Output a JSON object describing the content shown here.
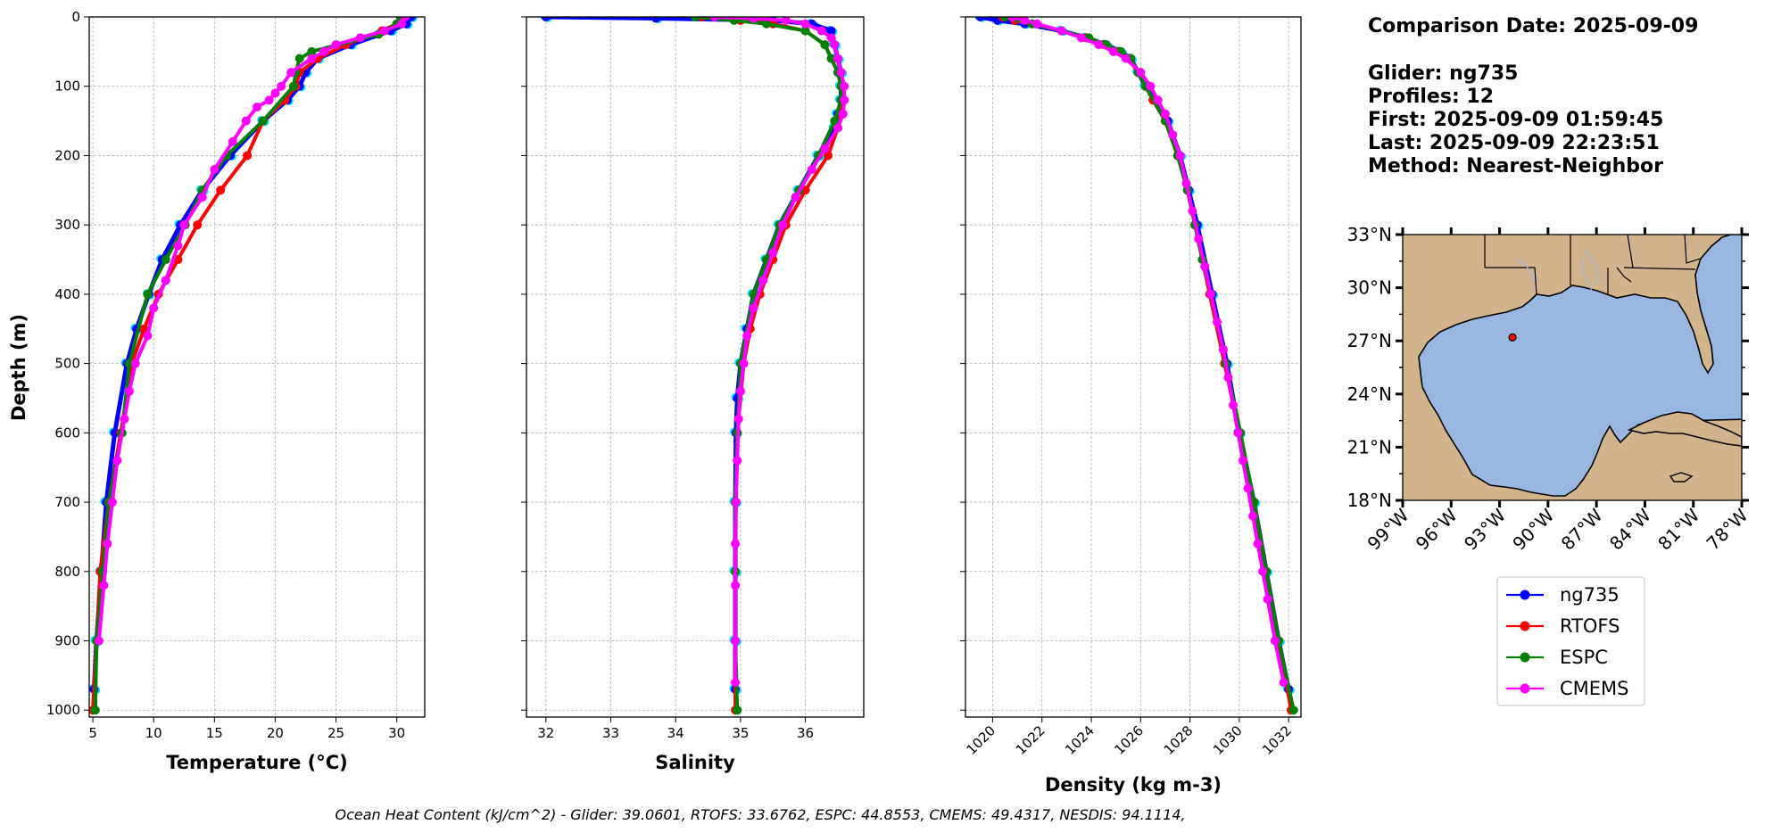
{
  "info": {
    "comparison_date": "Comparison Date: 2025-09-09",
    "glider": "Glider: ng735",
    "profiles": "Profiles: 12",
    "first": "First: 2025-09-09 01:59:45",
    "last": "Last: 2025-09-09 22:23:51",
    "method": "Method: Nearest-Neighbor"
  },
  "footer": "Ocean Heat Content (kJ/cm^2) - Glider: 39.0601,  RTOFS: 33.6762,  ESPC: 44.8553,  CMEMS: 49.4317,  NESDIS: 94.1114,",
  "colors": {
    "ng735": "#0000ff",
    "ng735_scatter": "#00e5ff",
    "RTOFS": "#ff0000",
    "ESPC": "#008000",
    "CMEMS": "#ff00ff",
    "land": "#d2b48c",
    "ocean": "#99b6e0"
  },
  "chart_data": [
    {
      "type": "line",
      "name": "temperature-profile",
      "xlabel": "Temperature (°C)",
      "ylabel": "Depth (m)",
      "xlim": [
        4.7,
        32.3
      ],
      "ylim": [
        1010,
        0
      ],
      "xticks": [
        5,
        10,
        15,
        20,
        25,
        30
      ],
      "yticks": [
        0,
        100,
        200,
        300,
        400,
        500,
        600,
        700,
        800,
        900,
        1000
      ],
      "grid": true,
      "series": [
        {
          "name": "ng735",
          "depth": [
            0,
            10,
            20,
            40,
            60,
            80,
            100,
            120,
            150,
            200,
            250,
            300,
            350,
            400,
            450,
            500,
            600,
            700,
            800,
            900,
            970
          ],
          "values": [
            31.2,
            30.8,
            29.5,
            26.2,
            23.5,
            22.5,
            22.0,
            21.0,
            19.0,
            16.3,
            14.0,
            12.2,
            10.7,
            9.6,
            8.6,
            7.8,
            6.8,
            6.1,
            5.7,
            5.3,
            5.1
          ]
        },
        {
          "name": "RTOFS",
          "depth": [
            0,
            10,
            20,
            40,
            60,
            80,
            100,
            120,
            150,
            200,
            250,
            300,
            350,
            400,
            450,
            500,
            600,
            700,
            800,
            900,
            1000
          ],
          "values": [
            30.3,
            30.0,
            28.8,
            25.8,
            23.5,
            22.0,
            21.7,
            20.8,
            19.0,
            17.7,
            15.5,
            13.6,
            12.0,
            10.4,
            9.2,
            8.2,
            7.3,
            6.3,
            5.6,
            5.3,
            5.0
          ]
        },
        {
          "name": "ESPC",
          "depth": [
            0,
            10,
            25,
            50,
            60,
            80,
            100,
            150,
            200,
            250,
            300,
            350,
            400,
            500,
            600,
            700,
            800,
            900,
            1000
          ],
          "values": [
            30.3,
            30.0,
            28.5,
            23.0,
            22.0,
            21.7,
            21.5,
            19.0,
            16.0,
            14.0,
            12.6,
            11.0,
            9.5,
            8.0,
            7.4,
            6.3,
            5.8,
            5.3,
            5.2
          ]
        },
        {
          "name": "CMEMS",
          "depth": [
            0,
            10,
            20,
            30,
            40,
            50,
            60,
            80,
            100,
            110,
            120,
            130,
            150,
            180,
            220,
            260,
            300,
            330,
            380,
            420,
            460,
            500,
            540,
            580,
            640,
            700,
            760,
            820,
            900
          ],
          "values": [
            30.7,
            30.4,
            29.0,
            27.0,
            25.0,
            24.0,
            23.0,
            21.3,
            20.5,
            20.0,
            19.5,
            18.5,
            17.6,
            16.5,
            15.0,
            14.0,
            12.5,
            12.0,
            11.0,
            10.0,
            9.5,
            8.5,
            8.0,
            7.6,
            7.0,
            6.6,
            6.2,
            5.9,
            5.5
          ]
        }
      ]
    },
    {
      "type": "line",
      "name": "salinity-profile",
      "xlabel": "Salinity",
      "ylabel": "",
      "xlim": [
        31.7,
        36.9
      ],
      "ylim": [
        1010,
        0
      ],
      "xticks": [
        32,
        33,
        34,
        35,
        36
      ],
      "yticks": [
        0,
        100,
        200,
        300,
        400,
        500,
        600,
        700,
        800,
        900,
        1000
      ],
      "grid": true,
      "series": [
        {
          "name": "ng735",
          "depth": [
            0,
            2,
            5,
            10,
            20,
            40,
            60,
            80,
            100,
            120,
            140,
            160,
            200,
            250,
            300,
            350,
            400,
            450,
            500,
            550,
            600,
            700,
            800,
            900,
            970
          ],
          "values": [
            32.0,
            33.7,
            35.5,
            36.1,
            36.4,
            36.45,
            36.5,
            36.55,
            36.55,
            36.55,
            36.5,
            36.45,
            36.2,
            35.9,
            35.6,
            35.4,
            35.2,
            35.1,
            35.0,
            34.95,
            34.93,
            34.92,
            34.92,
            34.92,
            34.92
          ]
        },
        {
          "name": "RTOFS",
          "depth": [
            0,
            5,
            10,
            20,
            40,
            60,
            80,
            100,
            120,
            140,
            160,
            200,
            250,
            300,
            350,
            400,
            450,
            500,
            600,
            700,
            800,
            900,
            1000
          ],
          "values": [
            34.4,
            35.0,
            35.5,
            36.0,
            36.3,
            36.4,
            36.5,
            36.55,
            36.55,
            36.55,
            36.5,
            36.35,
            36.0,
            35.7,
            35.5,
            35.3,
            35.15,
            35.05,
            34.95,
            34.93,
            34.92,
            34.92,
            34.92
          ]
        },
        {
          "name": "ESPC",
          "depth": [
            0,
            5,
            10,
            20,
            40,
            60,
            80,
            100,
            120,
            150,
            200,
            250,
            300,
            350,
            400,
            500,
            600,
            700,
            800,
            900,
            1000
          ],
          "values": [
            34.3,
            34.9,
            35.4,
            36.0,
            36.3,
            36.4,
            36.5,
            36.55,
            36.55,
            36.45,
            36.2,
            35.9,
            35.6,
            35.4,
            35.2,
            35.0,
            34.95,
            34.92,
            34.92,
            34.92,
            34.95
          ]
        },
        {
          "name": "CMEMS",
          "depth": [
            0,
            2,
            5,
            10,
            20,
            30,
            40,
            60,
            80,
            100,
            120,
            140,
            160,
            190,
            220,
            260,
            300,
            340,
            380,
            420,
            460,
            500,
            540,
            580,
            640,
            700,
            760,
            820,
            900,
            960
          ],
          "values": [
            34.6,
            35.2,
            35.7,
            36.0,
            36.25,
            36.4,
            36.45,
            36.5,
            36.55,
            36.6,
            36.6,
            36.58,
            36.5,
            36.3,
            36.1,
            35.85,
            35.65,
            35.5,
            35.35,
            35.2,
            35.1,
            35.05,
            35.0,
            34.97,
            34.95,
            34.93,
            34.92,
            34.92,
            34.92,
            34.92
          ]
        }
      ]
    },
    {
      "type": "line",
      "name": "density-profile",
      "xlabel": "Density (kg m-3)",
      "ylabel": "",
      "xlim": [
        1018.9,
        1032.5
      ],
      "ylim": [
        1010,
        0
      ],
      "xticks": [
        1020,
        1022,
        1024,
        1026,
        1028,
        1030,
        1032
      ],
      "yticks": [
        0,
        100,
        200,
        300,
        400,
        500,
        600,
        700,
        800,
        900,
        1000
      ],
      "grid": true,
      "series": [
        {
          "name": "ng735",
          "depth": [
            0,
            5,
            10,
            20,
            30,
            40,
            50,
            60,
            80,
            100,
            120,
            150,
            200,
            250,
            300,
            400,
            500,
            600,
            700,
            800,
            900,
            970
          ],
          "values": [
            1019.5,
            1020.2,
            1021.3,
            1022.8,
            1023.8,
            1024.6,
            1025.2,
            1025.6,
            1025.9,
            1026.2,
            1026.6,
            1027.1,
            1027.6,
            1027.95,
            1028.3,
            1028.9,
            1029.5,
            1030.0,
            1030.6,
            1031.1,
            1031.6,
            1032.0
          ]
        },
        {
          "name": "RTOFS",
          "depth": [
            0,
            5,
            10,
            20,
            30,
            40,
            50,
            60,
            80,
            100,
            120,
            150,
            200,
            250,
            300,
            400,
            500,
            600,
            700,
            800,
            900,
            1000
          ],
          "values": [
            1020.4,
            1020.9,
            1021.6,
            1022.8,
            1023.8,
            1024.5,
            1025.1,
            1025.5,
            1025.9,
            1026.2,
            1026.5,
            1027.0,
            1027.5,
            1027.9,
            1028.2,
            1028.8,
            1029.4,
            1030.0,
            1030.6,
            1031.1,
            1031.6,
            1032.1
          ]
        },
        {
          "name": "ESPC",
          "depth": [
            0,
            10,
            20,
            30,
            40,
            50,
            60,
            80,
            100,
            150,
            200,
            250,
            300,
            350,
            400,
            500,
            600,
            700,
            800,
            900,
            1000
          ],
          "values": [
            1020.5,
            1021.6,
            1022.8,
            1023.9,
            1024.6,
            1025.2,
            1025.6,
            1025.9,
            1026.2,
            1027.0,
            1027.5,
            1027.9,
            1028.2,
            1028.5,
            1028.85,
            1029.45,
            1030.05,
            1030.6,
            1031.1,
            1031.6,
            1032.2
          ]
        },
        {
          "name": "CMEMS",
          "depth": [
            0,
            5,
            10,
            20,
            30,
            40,
            50,
            60,
            80,
            100,
            120,
            140,
            170,
            200,
            240,
            280,
            320,
            360,
            400,
            440,
            480,
            520,
            560,
            600,
            640,
            680,
            720,
            760,
            800,
            840,
            900,
            960
          ],
          "values": [
            1020.8,
            1021.3,
            1021.8,
            1022.8,
            1023.6,
            1024.3,
            1024.9,
            1025.4,
            1026.0,
            1026.4,
            1026.7,
            1027.0,
            1027.3,
            1027.6,
            1027.85,
            1028.1,
            1028.35,
            1028.6,
            1028.85,
            1029.1,
            1029.35,
            1029.55,
            1029.75,
            1029.95,
            1030.15,
            1030.35,
            1030.55,
            1030.75,
            1030.95,
            1031.15,
            1031.45,
            1031.8
          ]
        }
      ]
    }
  ],
  "map": {
    "lat_labels": [
      "33°N",
      "30°N",
      "27°N",
      "24°N",
      "21°N",
      "18°N"
    ],
    "lon_labels": [
      "99°W",
      "96°W",
      "93°W",
      "90°W",
      "87°W",
      "84°W",
      "81°W",
      "78°W"
    ],
    "lat_range": [
      18,
      33
    ],
    "lon_range": [
      -99,
      -78
    ],
    "glider_position": {
      "lon": -92.2,
      "lat": 27.2
    }
  },
  "legend": {
    "entries": [
      {
        "name": "ng735",
        "key": "ng735"
      },
      {
        "name": "RTOFS",
        "key": "RTOFS"
      },
      {
        "name": "ESPC",
        "key": "ESPC"
      },
      {
        "name": "CMEMS",
        "key": "CMEMS"
      }
    ]
  }
}
